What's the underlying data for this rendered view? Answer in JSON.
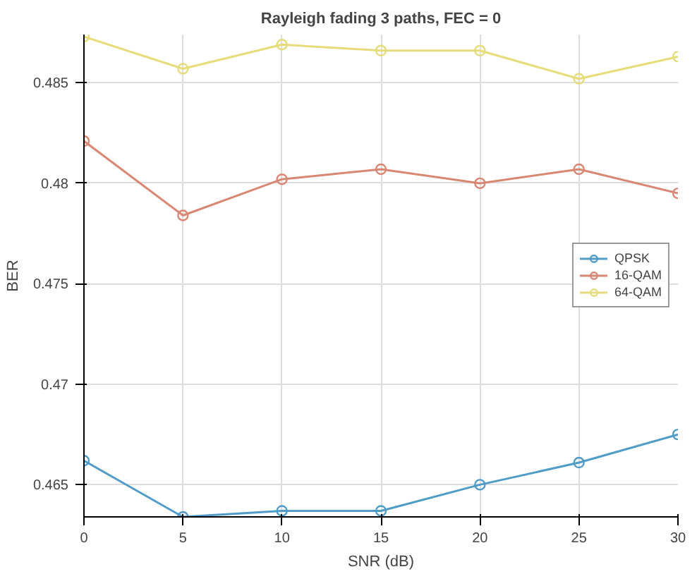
{
  "chart_data": {
    "type": "line",
    "title": "Rayleigh fading 3 paths, FEC = 0",
    "xlabel": "SNR (dB)",
    "ylabel": "BER",
    "x": [
      0,
      5,
      10,
      15,
      20,
      25,
      30
    ],
    "series": [
      {
        "name": "QPSK",
        "color": "#4f9cc8",
        "values": [
          0.4662,
          0.4634,
          0.4637,
          0.4637,
          0.465,
          0.4661,
          0.4675
        ]
      },
      {
        "name": "16-QAM",
        "color": "#d98672",
        "values": [
          0.4821,
          0.4784,
          0.4802,
          0.4807,
          0.48,
          0.4807,
          0.4795
        ]
      },
      {
        "name": "64-QAM",
        "color": "#e6dc7a",
        "values": [
          0.4873,
          0.4857,
          0.4869,
          0.4866,
          0.4866,
          0.4852,
          0.4863
        ]
      }
    ],
    "xlim": [
      0,
      30
    ],
    "ylim": [
      0.4634,
      0.4874
    ],
    "xticks": [
      0,
      5,
      10,
      15,
      20,
      25,
      30
    ],
    "yticks": [
      0.465,
      0.47,
      0.475,
      0.48,
      0.485
    ],
    "grid": true,
    "legend": "right",
    "marker": "circle",
    "line_style": "solid"
  }
}
